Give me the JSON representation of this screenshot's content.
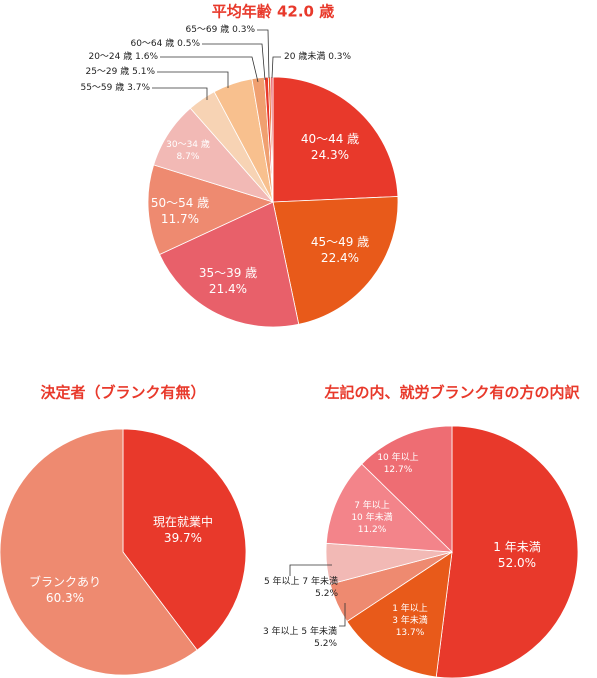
{
  "chart_data": [
    {
      "type": "pie",
      "title": "平均年齢 42.0 歳",
      "categories": [
        "40〜44 歳",
        "45〜49 歳",
        "35〜39 歳",
        "50〜54 歳",
        "30〜34 歳",
        "55〜59 歳",
        "25〜29 歳",
        "20〜24 歳",
        "60〜64 歳",
        "65〜69 歳",
        "20 歳未満"
      ],
      "values": [
        24.3,
        22.4,
        21.4,
        11.7,
        8.7,
        3.7,
        5.1,
        1.6,
        0.5,
        0.3,
        0.3
      ],
      "value_labels": [
        "24.3%",
        "22.4%",
        "21.4%",
        "11.7%",
        "8.7%",
        "3.7%",
        "5.1%",
        "1.6%",
        "0.5%",
        "0.3%",
        "0.3%"
      ],
      "colors": [
        "#e8392b",
        "#e85a1a",
        "#e8606a",
        "#ee8a70",
        "#f2b9b5",
        "#f7d3b4",
        "#f8c08e",
        "#f0a070",
        "#e8392b",
        "#e85a1a",
        "#e8606a"
      ]
    },
    {
      "type": "pie",
      "title": "決定者（ブランク有無）",
      "categories": [
        "現在就業中",
        "ブランクあり"
      ],
      "values": [
        39.7,
        60.3
      ],
      "value_labels": [
        "39.7%",
        "60.3%"
      ],
      "colors": [
        "#e8392b",
        "#ee8a70"
      ]
    },
    {
      "type": "pie",
      "title": "左記の内、就労ブランク有の方の内訳",
      "categories": [
        "1 年未満",
        "1 年以上\n3 年未満",
        "3 年以上 5 年未満",
        "5 年以上 7 年未満",
        "7 年以上\n10 年未満",
        "10 年以上"
      ],
      "values": [
        52.0,
        13.7,
        5.2,
        5.2,
        11.2,
        12.7
      ],
      "value_labels": [
        "52.0%",
        "13.7%",
        "5.2%",
        "5.2%",
        "11.2%",
        "12.7%"
      ],
      "colors": [
        "#e8392b",
        "#e85a1a",
        "#ee8a70",
        "#f2b9b5",
        "#f3848a",
        "#ee6d73"
      ]
    }
  ]
}
